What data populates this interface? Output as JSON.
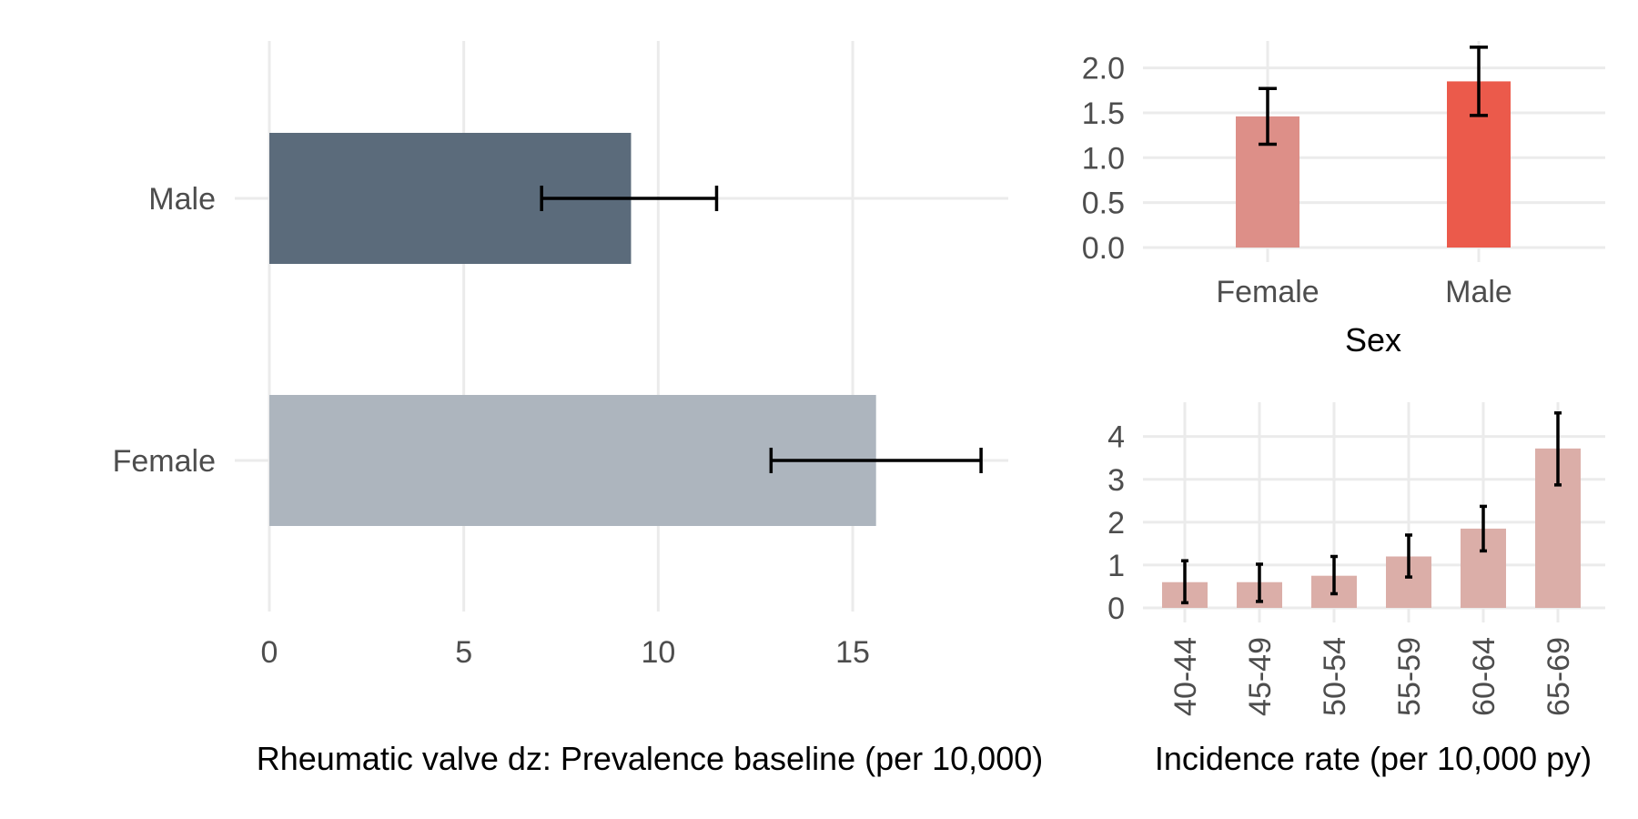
{
  "chart_data": [
    {
      "id": "prevalence",
      "type": "bar",
      "orientation": "horizontal",
      "categories": [
        "Male",
        "Female"
      ],
      "values": [
        9.3,
        15.6
      ],
      "error_low": [
        7.0,
        12.9
      ],
      "error_high": [
        11.5,
        18.3
      ],
      "bar_colors": [
        "#5b6b7b",
        "#adb5be"
      ],
      "xlabel": "Rheumatic valve dz: Prevalence baseline (per 10,000)",
      "ylabel": "",
      "xlim": [
        0,
        19
      ],
      "xticks": [
        0,
        5,
        10,
        15
      ],
      "grid": true
    },
    {
      "id": "incidence-sex",
      "type": "bar",
      "orientation": "vertical",
      "categories": [
        "Female",
        "Male"
      ],
      "values": [
        1.46,
        1.85
      ],
      "error_low": [
        1.15,
        1.47
      ],
      "error_high": [
        1.77,
        2.23
      ],
      "bar_colors": [
        "#dd8f88",
        "#eb5a4b"
      ],
      "xlabel": "Sex",
      "ylabel": "",
      "ylim": [
        0,
        2.3
      ],
      "yticks": [
        0.0,
        0.5,
        1.0,
        1.5,
        2.0
      ],
      "ytick_labels": [
        "0.0",
        "0.5",
        "1.0",
        "1.5",
        "2.0"
      ],
      "grid": true
    },
    {
      "id": "incidence-age",
      "type": "bar",
      "orientation": "vertical",
      "categories": [
        "40-44",
        "45-49",
        "50-54",
        "55-59",
        "60-64",
        "65-69"
      ],
      "values": [
        0.6,
        0.6,
        0.75,
        1.2,
        1.85,
        3.72
      ],
      "error_low": [
        0.12,
        0.15,
        0.33,
        0.72,
        1.33,
        2.87
      ],
      "error_high": [
        1.1,
        1.02,
        1.2,
        1.7,
        2.37,
        4.55
      ],
      "bar_colors": [
        "#dbaea8"
      ],
      "xlabel": "Incidence rate (per 10,000 py)",
      "ylabel": "",
      "ylim": [
        0,
        4.8
      ],
      "yticks": [
        0,
        1,
        2,
        3,
        4
      ],
      "ytick_labels": [
        "0",
        "1",
        "2",
        "3",
        "4"
      ],
      "grid": true
    }
  ]
}
